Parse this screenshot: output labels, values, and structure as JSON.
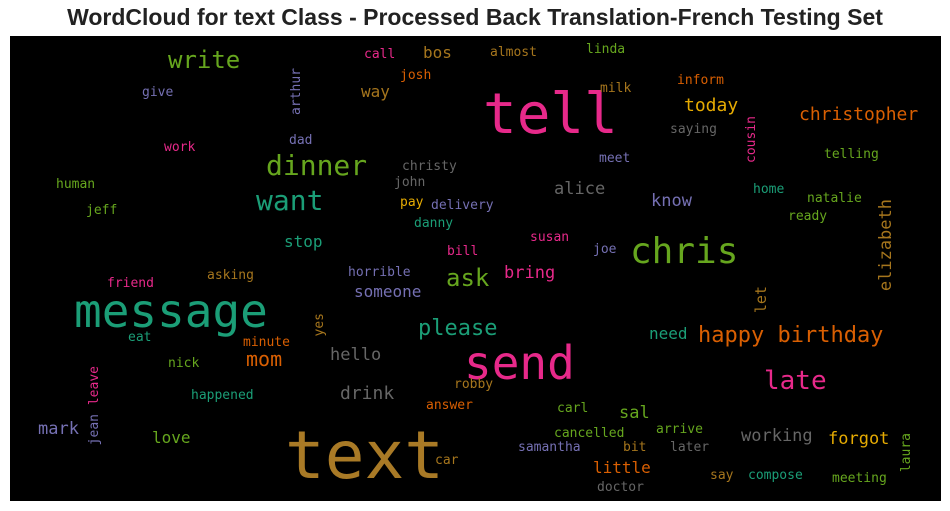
{
  "title": "WordCloud for text Class - Processed Back Translation-French Testing Set",
  "chart_data": {
    "type": "wordcloud",
    "background": "#000000",
    "words": [
      {
        "text": "text",
        "color": "#a97a26"
      },
      {
        "text": "message",
        "color": "#1b9e77"
      },
      {
        "text": "send",
        "color": "#e7298a"
      },
      {
        "text": "tell",
        "color": "#e7298a"
      },
      {
        "text": "chris",
        "color": "#66a61e"
      },
      {
        "text": "want",
        "color": "#1b9e77"
      },
      {
        "text": "dinner",
        "color": "#66a61e"
      },
      {
        "text": "happy birthday",
        "color": "#d95f02"
      },
      {
        "text": "late",
        "color": "#e7298a"
      },
      {
        "text": "write",
        "color": "#66a61e"
      },
      {
        "text": "please",
        "color": "#1b9e77"
      },
      {
        "text": "ask",
        "color": "#66a61e"
      },
      {
        "text": "mom",
        "color": "#d95f02"
      },
      {
        "text": "christopher",
        "color": "#d95f02"
      },
      {
        "text": "forgot",
        "color": "#e6ab02"
      },
      {
        "text": "working",
        "color": "#666666"
      },
      {
        "text": "today",
        "color": "#e6ab02"
      },
      {
        "text": "elizabeth",
        "color": "#a6761d"
      },
      {
        "text": "drink",
        "color": "#666666"
      },
      {
        "text": "hello",
        "color": "#666666"
      },
      {
        "text": "bring",
        "color": "#e7298a"
      },
      {
        "text": "someone",
        "color": "#7570b3"
      },
      {
        "text": "little",
        "color": "#d95f02"
      },
      {
        "text": "stop",
        "color": "#1b9e77"
      },
      {
        "text": "alice",
        "color": "#666666"
      },
      {
        "text": "know",
        "color": "#7570b3"
      },
      {
        "text": "mark",
        "color": "#7570b3"
      },
      {
        "text": "love",
        "color": "#66a61e"
      },
      {
        "text": "sal",
        "color": "#66a61e"
      },
      {
        "text": "need",
        "color": "#1b9e77"
      },
      {
        "text": "way",
        "color": "#a6761d"
      },
      {
        "text": "bos",
        "color": "#a6761d"
      },
      {
        "text": "let",
        "color": "#a6761d"
      },
      {
        "text": "call",
        "color": "#e7298a"
      },
      {
        "text": "almost",
        "color": "#a6761d"
      },
      {
        "text": "linda",
        "color": "#66a61e"
      },
      {
        "text": "josh",
        "color": "#d95f02"
      },
      {
        "text": "arthur",
        "color": "#7570b3"
      },
      {
        "text": "give",
        "color": "#7570b3"
      },
      {
        "text": "milk",
        "color": "#a6761d"
      },
      {
        "text": "inform",
        "color": "#d95f02"
      },
      {
        "text": "saying",
        "color": "#666666"
      },
      {
        "text": "cousin",
        "color": "#e7298a"
      },
      {
        "text": "telling",
        "color": "#66a61e"
      },
      {
        "text": "work",
        "color": "#e7298a"
      },
      {
        "text": "dad",
        "color": "#7570b3"
      },
      {
        "text": "christy",
        "color": "#666666"
      },
      {
        "text": "meet",
        "color": "#7570b3"
      },
      {
        "text": "human",
        "color": "#66a61e"
      },
      {
        "text": "john",
        "color": "#666666"
      },
      {
        "text": "home",
        "color": "#1b9e77"
      },
      {
        "text": "natalie",
        "color": "#66a61e"
      },
      {
        "text": "jeff",
        "color": "#66a61e"
      },
      {
        "text": "pay",
        "color": "#e6ab02"
      },
      {
        "text": "delivery",
        "color": "#7570b3"
      },
      {
        "text": "ready",
        "color": "#66a61e"
      },
      {
        "text": "danny",
        "color": "#1b9e77"
      },
      {
        "text": "susan",
        "color": "#e7298a"
      },
      {
        "text": "bill",
        "color": "#e7298a"
      },
      {
        "text": "joe",
        "color": "#7570b3"
      },
      {
        "text": "friend",
        "color": "#e7298a"
      },
      {
        "text": "asking",
        "color": "#a6761d"
      },
      {
        "text": "horrible",
        "color": "#7570b3"
      },
      {
        "text": "yes",
        "color": "#a6761d"
      },
      {
        "text": "minute",
        "color": "#d95f02"
      },
      {
        "text": "eat",
        "color": "#1b9e77"
      },
      {
        "text": "leave",
        "color": "#e7298a"
      },
      {
        "text": "nick",
        "color": "#66a61e"
      },
      {
        "text": "jean",
        "color": "#7570b3"
      },
      {
        "text": "happened",
        "color": "#1b9e77"
      },
      {
        "text": "robby",
        "color": "#a6761d"
      },
      {
        "text": "answer",
        "color": "#d95f02"
      },
      {
        "text": "carl",
        "color": "#66a61e"
      },
      {
        "text": "arrive",
        "color": "#66a61e"
      },
      {
        "text": "cancelled",
        "color": "#66a61e"
      },
      {
        "text": "samantha",
        "color": "#7570b3"
      },
      {
        "text": "bit",
        "color": "#a6761d"
      },
      {
        "text": "later",
        "color": "#666666"
      },
      {
        "text": "laura",
        "color": "#66a61e"
      },
      {
        "text": "car",
        "color": "#a6761d"
      },
      {
        "text": "say",
        "color": "#a6761d"
      },
      {
        "text": "compose",
        "color": "#1b9e77"
      },
      {
        "text": "meeting",
        "color": "#66a61e"
      },
      {
        "text": "doctor",
        "color": "#666666"
      }
    ]
  }
}
